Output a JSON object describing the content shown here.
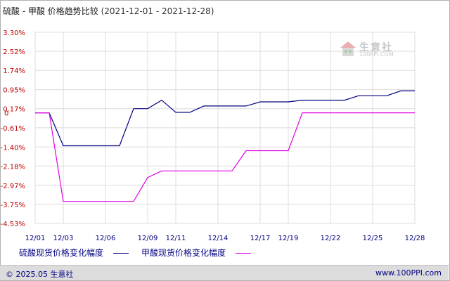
{
  "header": {
    "title": "硫酸 - 甲酸 价格趋势比较",
    "date_range": "(2021-12-01 - 2021-12-28)"
  },
  "watermark": {
    "name": "生意社",
    "url": "100PPI.COM"
  },
  "footer": {
    "copyright": "© 2025.05 生意社",
    "site": "www.100PPI.com"
  },
  "chart_data": {
    "type": "line",
    "title": "硫酸 - 甲酸 价格趋势比较",
    "xlabel": "",
    "ylabel": "",
    "x_ticks": [
      "12/01",
      "12/03",
      "12/06",
      "12/09",
      "12/11",
      "12/14",
      "12/17",
      "12/19",
      "12/22",
      "12/25",
      "12/28"
    ],
    "y_ticks": [
      "3.30%",
      "2.52%",
      "1.74%",
      "0.95%",
      "0.17%",
      "-0.61%",
      "-1.40%",
      "-2.18%",
      "-2.97%",
      "-3.75%",
      "-4.53%"
    ],
    "y_tick_values": [
      3.3,
      2.52,
      1.74,
      0.95,
      0.17,
      -0.61,
      -1.4,
      -2.18,
      -2.97,
      -3.75,
      -4.53
    ],
    "zero_label": "0",
    "ylim": [
      -4.53,
      3.3
    ],
    "grid": true,
    "legend_position": "bottom",
    "x": [
      "12/01",
      "12/02",
      "12/03",
      "12/04",
      "12/05",
      "12/06",
      "12/07",
      "12/08",
      "12/09",
      "12/10",
      "12/11",
      "12/12",
      "12/13",
      "12/14",
      "12/15",
      "12/16",
      "12/17",
      "12/18",
      "12/19",
      "12/20",
      "12/21",
      "12/22",
      "12/23",
      "12/24",
      "12/25",
      "12/26",
      "12/27",
      "12/28"
    ],
    "series": [
      {
        "name": "硫酸现货价格变化幅度",
        "color": "#000080",
        "values": [
          0,
          0,
          -1.35,
          -1.35,
          -1.35,
          -1.35,
          -1.35,
          0.17,
          0.17,
          0.52,
          0.02,
          0.02,
          0.28,
          0.28,
          0.28,
          0.28,
          0.45,
          0.45,
          0.45,
          0.52,
          0.52,
          0.52,
          0.52,
          0.7,
          0.7,
          0.7,
          0.9,
          0.9
        ]
      },
      {
        "name": "甲酸现货价格变化幅度",
        "color": "#e000e0",
        "values": [
          0,
          0,
          -3.63,
          -3.63,
          -3.63,
          -3.63,
          -3.63,
          -3.63,
          -2.65,
          -2.38,
          -2.38,
          -2.38,
          -2.38,
          -2.38,
          -2.38,
          -1.55,
          -1.55,
          -1.55,
          -1.55,
          0,
          0,
          0,
          0,
          0,
          0,
          0,
          0,
          0
        ]
      }
    ]
  }
}
